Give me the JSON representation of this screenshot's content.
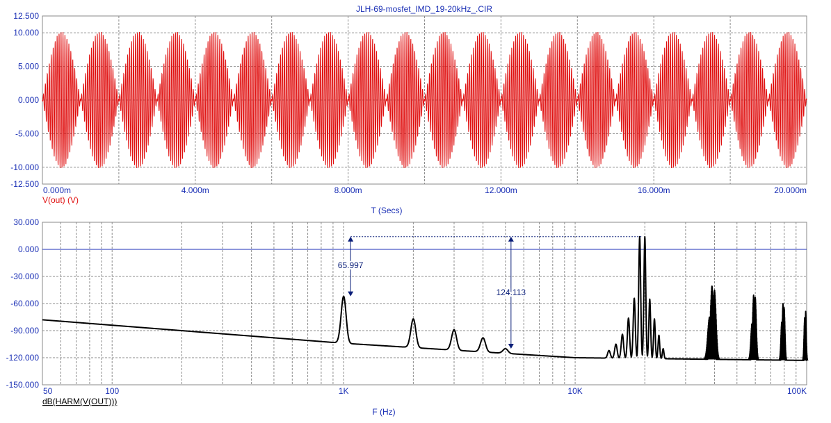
{
  "title": "JLH-69-mosfet_IMD_19-20kHz_.CIR",
  "colors": {
    "title": "#1a2fb5",
    "axis_text": "#1a2fb5",
    "trace_top": "#e01010",
    "trace_bottom": "#000000",
    "zero_line": "#1d2fb8",
    "grid": "#8c8c8c",
    "measure": "#0a1e78"
  },
  "top_plot": {
    "trace_label": "V(out) (V)",
    "xlabel": "T (Secs)",
    "y_ticks": [
      "12.500",
      "10.000",
      "5.000",
      "0.000",
      "-5.000",
      "-10.000",
      "-12.500"
    ],
    "x_ticks": [
      "0.000m",
      "4.000m",
      "8.000m",
      "12.000m",
      "16.000m",
      "20.000m"
    ]
  },
  "bottom_plot": {
    "trace_label": "dB(HARM(V(OUT)))",
    "xlabel": "F (Hz)",
    "y_ticks": [
      "30.000",
      "0.000",
      "-30.000",
      "-60.000",
      "-90.000",
      "-120.000",
      "-150.000"
    ],
    "x_ticks": [
      "50",
      "100",
      "1K",
      "10K",
      "100K"
    ],
    "measurements": [
      {
        "label": "65.997"
      },
      {
        "label": "124.113"
      }
    ]
  },
  "chart_data": [
    {
      "type": "line",
      "title": "JLH-69-mosfet_IMD_19-20kHz_.CIR",
      "xlabel": "T (Secs)",
      "ylabel": "",
      "xlim": [
        0,
        0.02
      ],
      "ylim": [
        -12.5,
        12.5
      ],
      "grid": true,
      "series": [
        {
          "name": "V(out) (V)",
          "description_signal": "two-tone sum: 19 kHz + 20 kHz, equal amplitudes, 1 kHz beat envelope",
          "peak": 10.2,
          "tone_frequencies_hz": [
            19000,
            20000
          ]
        }
      ]
    },
    {
      "type": "line",
      "title": "",
      "xlabel": "F (Hz)",
      "ylabel": "",
      "xscale": "log",
      "xlim": [
        50,
        100000
      ],
      "ylim": [
        -150,
        30
      ],
      "grid": true,
      "series": [
        {
          "name": "dB(HARM(V(OUT)))",
          "noise_floor": [
            [
              50,
              -78
            ],
            [
              1000,
              -104
            ],
            [
              10000,
              -120
            ],
            [
              100000,
              -123
            ]
          ],
          "peaks": [
            {
              "x": 1000,
              "y": -52
            },
            {
              "x": 2000,
              "y": -77
            },
            {
              "x": 3000,
              "y": -89
            },
            {
              "x": 4000,
              "y": -98
            },
            {
              "x": 5000,
              "y": -110
            },
            {
              "x": 14000,
              "y": -112
            },
            {
              "x": 15000,
              "y": -105
            },
            {
              "x": 16000,
              "y": -94
            },
            {
              "x": 17000,
              "y": -76
            },
            {
              "x": 18000,
              "y": -54
            },
            {
              "x": 19000,
              "y": 14
            },
            {
              "x": 20000,
              "y": 14
            },
            {
              "x": 21000,
              "y": -55
            },
            {
              "x": 22000,
              "y": -77
            },
            {
              "x": 23000,
              "y": -95
            },
            {
              "x": 24000,
              "y": -110
            },
            {
              "x": 38000,
              "y": -75
            },
            {
              "x": 39000,
              "y": -40
            },
            {
              "x": 40000,
              "y": -45
            },
            {
              "x": 58000,
              "y": -82
            },
            {
              "x": 59000,
              "y": -50
            },
            {
              "x": 60000,
              "y": -53
            },
            {
              "x": 78000,
              "y": -80
            },
            {
              "x": 79000,
              "y": -60
            },
            {
              "x": 80000,
              "y": -64
            },
            {
              "x": 98000,
              "y": -75
            },
            {
              "x": 99000,
              "y": -68
            }
          ]
        }
      ],
      "measurements": [
        {
          "label": "65.997",
          "from_y": -52,
          "to_y": 14
        },
        {
          "label": "124.113",
          "from_y": -110,
          "to_y": 14
        }
      ]
    }
  ]
}
